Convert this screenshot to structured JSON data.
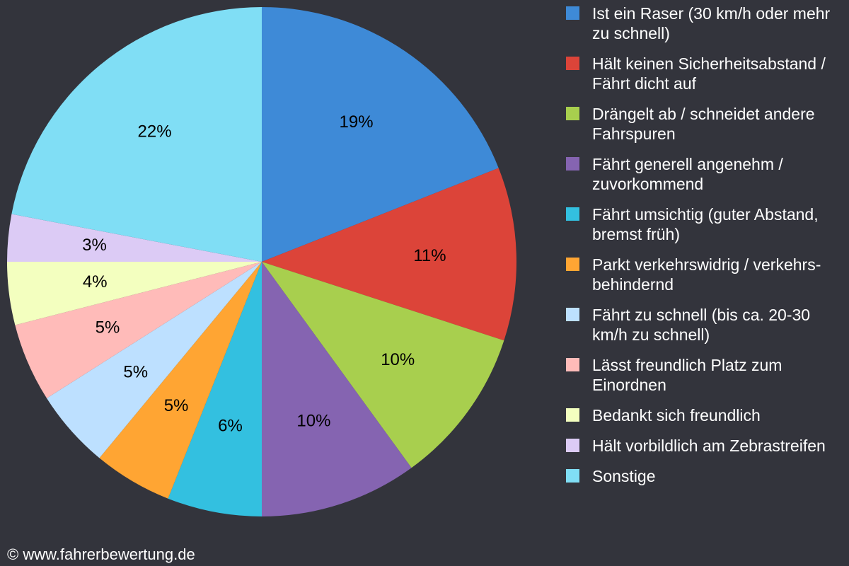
{
  "chart_data": {
    "type": "pie",
    "categories": [
      "Ist ein Raser (30 km/h oder mehr zu schnell)",
      "Hält keinen Sicherheitsabstand / Fährt dicht auf",
      "Drängelt ab / schneidet andere Fahrspuren",
      "Fährt generell angenehm / zuvorkommend",
      "Fährt umsichtig (guter Abstand, bremst früh)",
      "Parkt verkehrswidrig / verkehrs-behindernd",
      "Fährt zu schnell (bis ca. 20-30 km/h zu schnell)",
      "Lässt freundlich Platz zum Einordnen",
      "Bedankt sich freundlich",
      "Hält vorbildlich am Zebrastreifen",
      "Sonstige"
    ],
    "values": [
      19,
      11,
      10,
      10,
      6,
      5,
      5,
      5,
      4,
      3,
      22
    ],
    "value_labels": [
      "19%",
      "11%",
      "10%",
      "10%",
      "6%",
      "5%",
      "5%",
      "5%",
      "4%",
      "3%",
      "22%"
    ],
    "colors": [
      "#3e8ad7",
      "#dc4439",
      "#a8cf4e",
      "#8564b1",
      "#33c0e0",
      "#ffa533",
      "#bde0ff",
      "#ffbbb9",
      "#f3ffbf",
      "#dccbf5",
      "#80def5"
    ],
    "source": "© www.fahrerbewertung.de"
  }
}
